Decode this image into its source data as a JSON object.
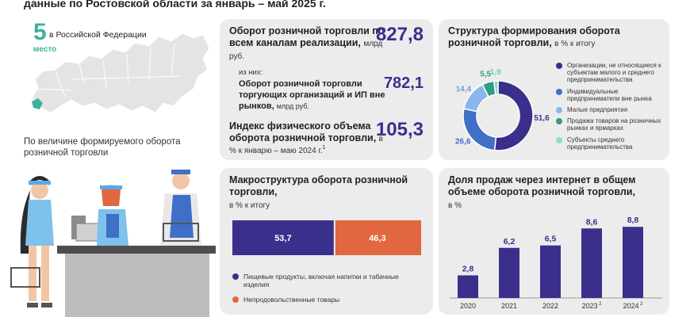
{
  "header": {
    "title": "данные по Ростовской области за январь – май 2025 г."
  },
  "ranking": {
    "number": "5",
    "place_label": "место",
    "scope_label": "в Российской Федерации",
    "caption": "По величине  формируемого оборота розничной  торговли"
  },
  "turnover": {
    "title": "Оборот розничной торговли по всем каналам реализации,",
    "unit": "млрд руб.",
    "value": "827,8",
    "sub_label": "из них:",
    "sub_title": "Оборот розничной торговли торгующих организаций и ИП вне рынков,",
    "sub_unit": "млрд  руб.",
    "sub_value": "782,1",
    "index_title": "Индекс физического объема оборота розничной торговли,",
    "index_unit": "в % к январю – маю 2024 г.",
    "index_footnote": "1",
    "index_value": "105,3"
  },
  "structure": {
    "title": "Структура формирования оборота розничной торговли,",
    "unit": "в % к итогу"
  },
  "macro": {
    "title": "Макроструктура оборота розничной торговли,",
    "unit": "в % к итогу"
  },
  "online": {
    "title": "Доля продаж через интернет в общем объеме оборота розничной торговли,",
    "unit": "в %"
  },
  "chart_data": [
    {
      "type": "pie",
      "title": "Структура формирования оборота розничной торговли",
      "labels": [
        "Организации, не относящиеся к субъектам малого и среднего предпринимательства",
        "Индивидуальные предприниматели вне рынка",
        "Малые предприятия",
        "Продажа товаров на розничных рынках и ярмарках",
        "Субъекты среднего предпринимательства"
      ],
      "values": [
        51.6,
        26.6,
        14.4,
        5.5,
        1.9
      ],
      "value_labels": [
        "51,6",
        "26,6",
        "14,4",
        "5,5",
        "1,9"
      ],
      "colors": [
        "#3b2f8c",
        "#3f6fc6",
        "#8ab8ea",
        "#2e9e86",
        "#8fdcc0"
      ],
      "legend_position": "right"
    },
    {
      "type": "bar",
      "title": "Макроструктура оборота розничной торговли",
      "stacked": true,
      "series": [
        {
          "name": "Пищевые продукты, включая напитки и табачные изделия",
          "values": [
            53.7
          ],
          "label": "53,7",
          "color": "#3b2f8c"
        },
        {
          "name": "Непродовольственные товары",
          "values": [
            46.3
          ],
          "label": "46,3",
          "color": "#e0673f"
        }
      ],
      "legend_position": "bottom"
    },
    {
      "type": "bar",
      "title": "Доля продаж через интернет в общем объеме оборота розничной торговли",
      "categories": [
        "2020",
        "2021",
        "2022",
        "2023",
        "2024"
      ],
      "category_footnotes": [
        "",
        "",
        "",
        "2",
        "2"
      ],
      "values": [
        2.8,
        6.2,
        6.5,
        8.6,
        8.8
      ],
      "value_labels": [
        "2,8",
        "6,2",
        "6,5",
        "8,6",
        "8,8"
      ],
      "ylim": [
        0,
        10
      ],
      "color": "#3b2f8c",
      "grid": false
    }
  ]
}
